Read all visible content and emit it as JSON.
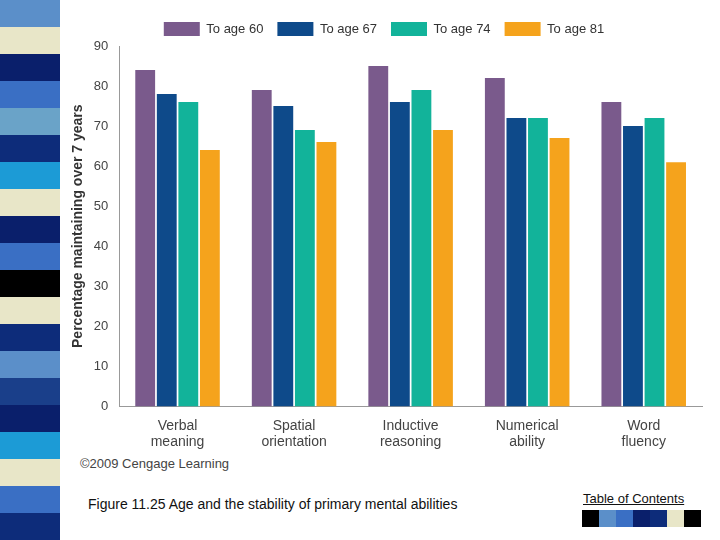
{
  "chart_data": {
    "type": "bar",
    "y_label": "Percentage maintaining over 7 years",
    "categories": [
      "Verbal meaning",
      "Spatial orientation",
      "Inductive reasoning",
      "Numerical ability",
      "Word fluency"
    ],
    "series": [
      {
        "name": "To age 60",
        "color": "#7a5a8c",
        "values": [
          84,
          79,
          85,
          82,
          76
        ]
      },
      {
        "name": "To age 67",
        "color": "#0e4a8a",
        "values": [
          78,
          75,
          76,
          72,
          70
        ]
      },
      {
        "name": "To age 74",
        "color": "#12b39a",
        "values": [
          76,
          69,
          79,
          72,
          72
        ]
      },
      {
        "name": "To age 81",
        "color": "#f5a31c",
        "values": [
          64,
          66,
          69,
          67,
          61
        ]
      }
    ],
    "ylim": [
      0,
      90
    ],
    "yticks": [
      0,
      10,
      20,
      30,
      40,
      50,
      60,
      70,
      80,
      90
    ],
    "grid": false,
    "legend": "top",
    "annotations": [
      "©2009 Cengage Learning"
    ]
  },
  "slide": {
    "caption": "Figure 11.25  Age and the stability of primary mental abilities",
    "link": "Table of Contents"
  }
}
